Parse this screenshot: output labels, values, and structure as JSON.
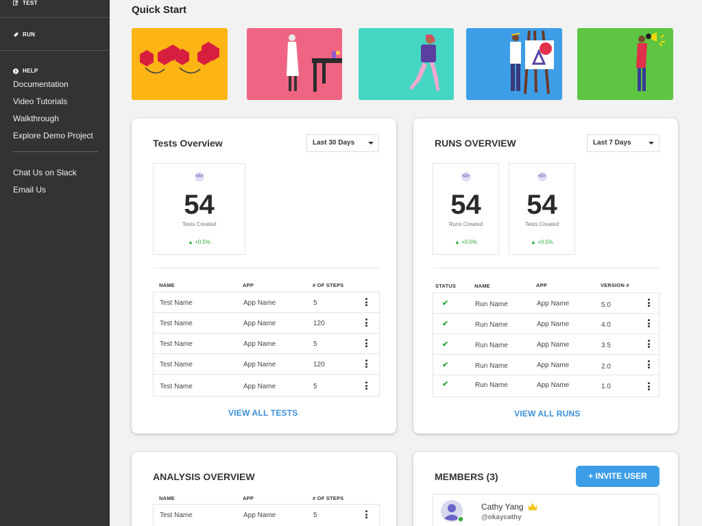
{
  "sidebar": {
    "test_label": "TEST",
    "run_label": "RUN",
    "help_label": "HELP",
    "help_links": [
      "Documentation",
      "Video Tutorials",
      "Walkthrough",
      "Explore Demo Project"
    ],
    "contact_links": [
      "Chat Us on Slack",
      "Email Us"
    ]
  },
  "quick_start": {
    "title": "Quick Start",
    "cards": [
      {
        "name": "blocks",
        "color": "#FDB515"
      },
      {
        "name": "scientist",
        "color": "#F06483"
      },
      {
        "name": "walking",
        "color": "#45D6C3"
      },
      {
        "name": "painter",
        "color": "#3D9DE6"
      },
      {
        "name": "megaphone",
        "color": "#5DC542"
      }
    ]
  },
  "tests_overview": {
    "title": "Tests Overview",
    "range": "Last 30 Days",
    "stats": [
      {
        "icon": "</>",
        "value": "54",
        "label": "Tests Created",
        "delta": "▲ +0.5%"
      }
    ],
    "columns": [
      "NAME",
      "APP",
      "# OF STEPS"
    ],
    "rows": [
      {
        "name": "Test Name",
        "app": "App Name",
        "steps": "5"
      },
      {
        "name": "Test Name",
        "app": "App Name",
        "steps": "120"
      },
      {
        "name": "Test Name",
        "app": "App Name",
        "steps": "5"
      },
      {
        "name": "Test Name",
        "app": "App Name",
        "steps": "120"
      },
      {
        "name": "Test Name",
        "app": "App Name",
        "steps": "5"
      }
    ],
    "view_all": "VIEW ALL TESTS"
  },
  "runs_overview": {
    "title": "RUNS OVERVIEW",
    "range": "Last 7 Days",
    "stats": [
      {
        "icon": "</>",
        "value": "54",
        "label": "Runs Created",
        "delta": "▲ +0.5%"
      },
      {
        "icon": "</>",
        "value": "54",
        "label": "Tests Created",
        "delta": "▲ +0.5%"
      }
    ],
    "columns": [
      "STATUS",
      "NAME",
      "APP",
      "VERSION #"
    ],
    "rows": [
      {
        "status": "✔",
        "name": "Run Name",
        "app": "App Name",
        "version": "5.0"
      },
      {
        "status": "✔",
        "name": "Run Name",
        "app": "App Name",
        "version": "4.0"
      },
      {
        "status": "✔",
        "name": "Run Name",
        "app": "App Name",
        "version": "3.5"
      },
      {
        "status": "✔",
        "name": "Run Name",
        "app": "App Name",
        "version": "2.0"
      },
      {
        "status": "✔",
        "name": "Run Name",
        "app": "App Name",
        "version": "1.0"
      }
    ],
    "view_all": "VIEW ALL RUNS"
  },
  "analysis_overview": {
    "title": "ANALYSIS OVERVIEW",
    "columns": [
      "NAME",
      "APP",
      "# OF STEPS"
    ],
    "rows": [
      {
        "name": "Test Name",
        "app": "App Name",
        "steps": "5"
      }
    ]
  },
  "members": {
    "title": "MEMBERS (3)",
    "invite_label": "+ INVITE USER",
    "list": [
      {
        "name": "Cathy Yang",
        "handle": "@okaycathy",
        "crown": "crown-icon",
        "online": true
      }
    ]
  }
}
